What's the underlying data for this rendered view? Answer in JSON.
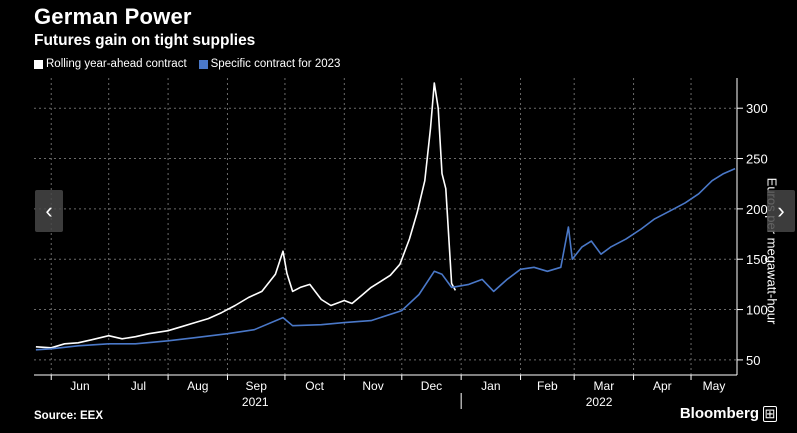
{
  "title": "German Power",
  "subtitle": "Futures gain on tight supplies",
  "source": "Source: EEX",
  "brand": "Bloomberg",
  "nav": {
    "prev": "‹",
    "next": "›"
  },
  "colors": {
    "background": "#000000",
    "rolling": "#ffffff",
    "specific": "#4a78c8",
    "grid": "#6a6a6a",
    "text": "#ffffff"
  },
  "chart_data": {
    "type": "line",
    "title": "German Power",
    "subtitle": "Futures gain on tight supplies",
    "ylabel": "Euros per megawatt-hour",
    "xlabel": "",
    "ylim": [
      35,
      330
    ],
    "yticks": [
      50,
      100,
      150,
      200,
      250,
      300
    ],
    "y_axis_side": "right",
    "xlim": [
      "2021-05-23",
      "2022-05-25"
    ],
    "month_labels": [
      "Jun",
      "Jul",
      "Aug",
      "Sep",
      "Oct",
      "Nov",
      "Dec",
      "Jan",
      "Feb",
      "Mar",
      "Apr",
      "May"
    ],
    "month_ticks": [
      "2021-06-01",
      "2021-07-01",
      "2021-08-01",
      "2021-09-01",
      "2021-10-01",
      "2021-11-01",
      "2021-12-01",
      "2022-01-01",
      "2022-02-01",
      "2022-03-01",
      "2022-04-01",
      "2022-05-01"
    ],
    "year_labels": [
      {
        "label": "2021",
        "start": "2021-06-01",
        "end": "2021-12-31"
      },
      {
        "label": "2022",
        "start": "2022-01-01",
        "end": "2022-05-25"
      }
    ],
    "year_divider": "2022-01-01",
    "grid": true,
    "legend_position": "top-left",
    "series": [
      {
        "name": "Rolling year-ahead contract",
        "color": "#ffffff",
        "points": [
          [
            "2021-05-24",
            63
          ],
          [
            "2021-06-01",
            62
          ],
          [
            "2021-06-08",
            66
          ],
          [
            "2021-06-15",
            67
          ],
          [
            "2021-06-22",
            70
          ],
          [
            "2021-07-01",
            74
          ],
          [
            "2021-07-08",
            71
          ],
          [
            "2021-07-15",
            73
          ],
          [
            "2021-07-22",
            76
          ],
          [
            "2021-08-01",
            79
          ],
          [
            "2021-08-08",
            83
          ],
          [
            "2021-08-15",
            87
          ],
          [
            "2021-08-22",
            91
          ],
          [
            "2021-08-29",
            97
          ],
          [
            "2021-09-05",
            104
          ],
          [
            "2021-09-12",
            112
          ],
          [
            "2021-09-19",
            118
          ],
          [
            "2021-09-26",
            135
          ],
          [
            "2021-09-30",
            158
          ],
          [
            "2021-10-02",
            136
          ],
          [
            "2021-10-05",
            118
          ],
          [
            "2021-10-09",
            122
          ],
          [
            "2021-10-14",
            125
          ],
          [
            "2021-10-20",
            110
          ],
          [
            "2021-10-25",
            104
          ],
          [
            "2021-11-01",
            109
          ],
          [
            "2021-11-05",
            106
          ],
          [
            "2021-11-10",
            114
          ],
          [
            "2021-11-15",
            122
          ],
          [
            "2021-11-20",
            128
          ],
          [
            "2021-11-25",
            134
          ],
          [
            "2021-11-30",
            145
          ],
          [
            "2021-12-05",
            170
          ],
          [
            "2021-12-09",
            196
          ],
          [
            "2021-12-13",
            228
          ],
          [
            "2021-12-16",
            280
          ],
          [
            "2021-12-18",
            325
          ],
          [
            "2021-12-20",
            300
          ],
          [
            "2021-12-22",
            235
          ],
          [
            "2021-12-24",
            220
          ],
          [
            "2021-12-27",
            126
          ],
          [
            "2021-12-29",
            119
          ]
        ]
      },
      {
        "name": "Specific contract for 2023",
        "color": "#4a78c8",
        "points": [
          [
            "2021-05-24",
            60
          ],
          [
            "2021-06-01",
            61
          ],
          [
            "2021-06-15",
            64
          ],
          [
            "2021-07-01",
            66
          ],
          [
            "2021-07-15",
            66
          ],
          [
            "2021-08-01",
            69
          ],
          [
            "2021-08-15",
            72
          ],
          [
            "2021-09-01",
            76
          ],
          [
            "2021-09-15",
            80
          ],
          [
            "2021-09-30",
            92
          ],
          [
            "2021-10-05",
            84
          ],
          [
            "2021-10-20",
            85
          ],
          [
            "2021-11-01",
            87
          ],
          [
            "2021-11-15",
            89
          ],
          [
            "2021-12-01",
            99
          ],
          [
            "2021-12-10",
            115
          ],
          [
            "2021-12-18",
            138
          ],
          [
            "2021-12-22",
            135
          ],
          [
            "2021-12-27",
            122
          ],
          [
            "2022-01-05",
            125
          ],
          [
            "2022-01-12",
            130
          ],
          [
            "2022-01-18",
            118
          ],
          [
            "2022-01-25",
            130
          ],
          [
            "2022-02-01",
            140
          ],
          [
            "2022-02-08",
            142
          ],
          [
            "2022-02-15",
            138
          ],
          [
            "2022-02-22",
            142
          ],
          [
            "2022-02-26",
            182
          ],
          [
            "2022-02-28",
            150
          ],
          [
            "2022-03-05",
            162
          ],
          [
            "2022-03-10",
            168
          ],
          [
            "2022-03-15",
            155
          ],
          [
            "2022-03-20",
            162
          ],
          [
            "2022-03-28",
            170
          ],
          [
            "2022-04-05",
            180
          ],
          [
            "2022-04-12",
            190
          ],
          [
            "2022-04-20",
            198
          ],
          [
            "2022-04-28",
            206
          ],
          [
            "2022-05-05",
            215
          ],
          [
            "2022-05-12",
            228
          ],
          [
            "2022-05-18",
            235
          ],
          [
            "2022-05-24",
            240
          ]
        ]
      }
    ]
  }
}
